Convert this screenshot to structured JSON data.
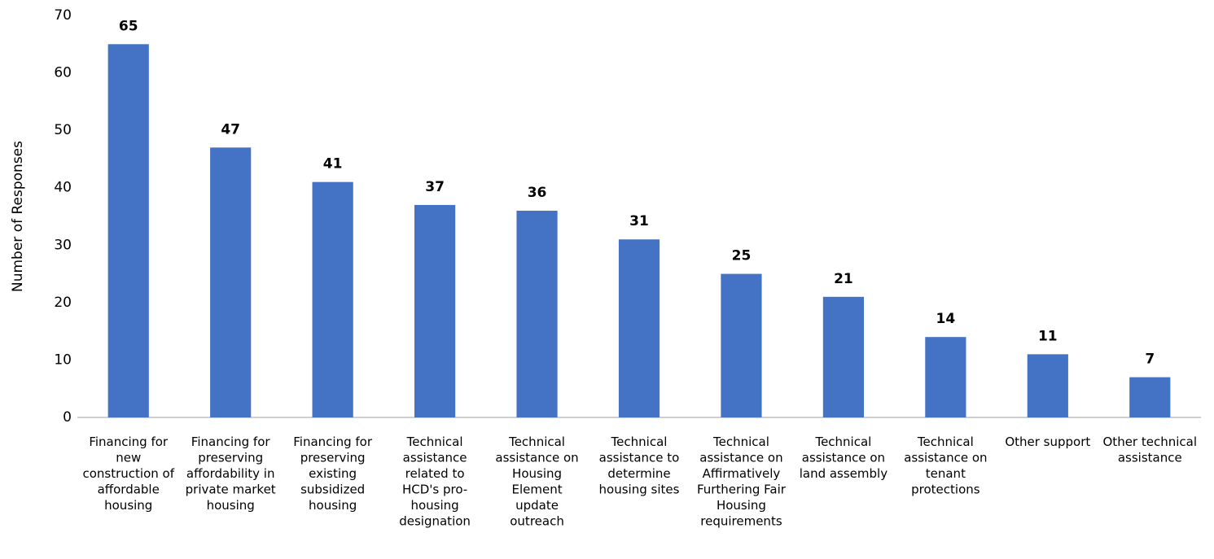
{
  "chart_data": {
    "type": "bar",
    "y_label": "Number of Responses",
    "categories": [
      "Financing for new construction of affordable housing",
      "Financing for preserving affordability in private market housing",
      "Financing for preserving existing subsidized housing",
      "Technical assistance related to HCD's pro-housing designation",
      "Technical assistance on Housing Element update outreach",
      "Technical assistance to determine housing sites",
      "Technical assistance on Affirmatively Furthering Fair Housing requirements",
      "Technical assistance on land assembly",
      "Technical assistance on tenant protections",
      "Other support",
      "Other technical assistance"
    ],
    "values": [
      65,
      47,
      41,
      37,
      36,
      31,
      25,
      21,
      14,
      11,
      7
    ],
    "color": "#4472c4",
    "ylim": [
      0,
      70
    ],
    "yticks": [
      0,
      10,
      20,
      30,
      40,
      50,
      60,
      70
    ],
    "grid": false
  }
}
